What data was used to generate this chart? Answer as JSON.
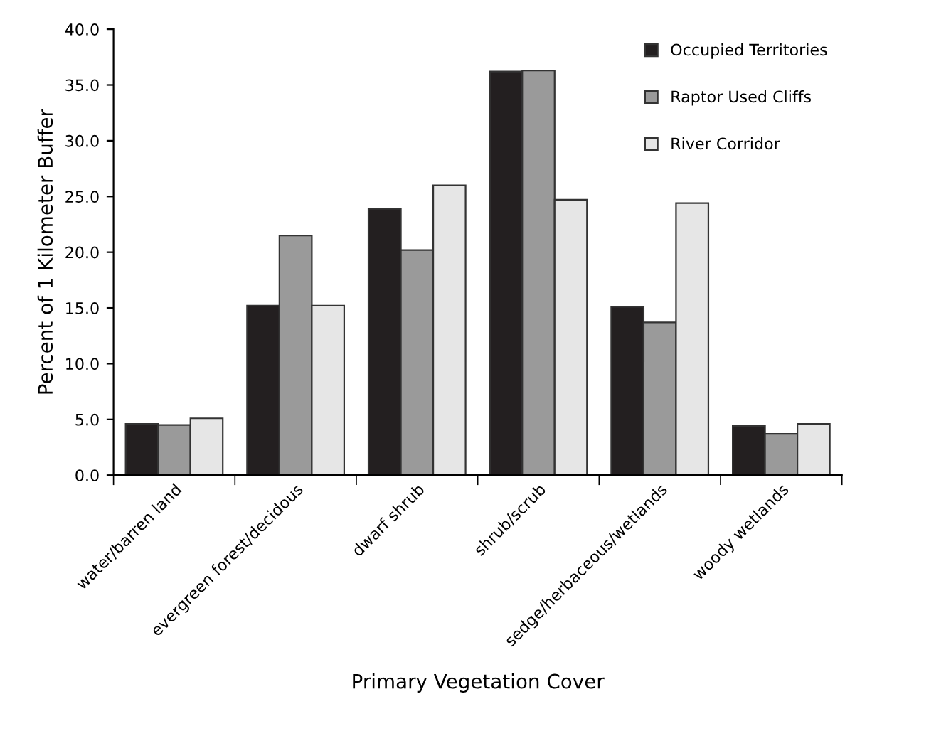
{
  "chart_data": {
    "type": "bar",
    "xlabel": "Primary Vegetation Cover",
    "ylabel": "Percent of 1 Kilometer Buffer",
    "categories": [
      "water/barren land",
      "evergreen forest/decidous",
      "dwarf shrub",
      "shrub/scrub",
      "sedge/herbaceous/wetlands",
      "woody wetlands"
    ],
    "series": [
      {
        "name": "Occupied Territories",
        "color": "#231f20",
        "values": [
          4.6,
          15.2,
          23.9,
          36.2,
          15.1,
          4.4
        ]
      },
      {
        "name": "Raptor Used Cliffs",
        "color": "#9a9a9a",
        "values": [
          4.5,
          21.5,
          20.2,
          36.3,
          13.7,
          3.7
        ]
      },
      {
        "name": "River Corridor",
        "color": "#e6e6e6",
        "values": [
          5.1,
          15.2,
          26.0,
          24.7,
          24.4,
          4.6
        ]
      }
    ],
    "ylim": [
      0,
      40
    ],
    "yticks": [
      {
        "value": 0,
        "label": "0.0"
      },
      {
        "value": 5,
        "label": "5.0"
      },
      {
        "value": 10,
        "label": "10.0"
      },
      {
        "value": 15,
        "label": "15.0"
      },
      {
        "value": 20,
        "label": "20.0"
      },
      {
        "value": 25,
        "label": "25.0"
      },
      {
        "value": 30,
        "label": "30.0"
      },
      {
        "value": 35,
        "label": "35.0"
      },
      {
        "value": 40,
        "label": "40.0"
      }
    ],
    "grid": false,
    "legend": "top right"
  }
}
